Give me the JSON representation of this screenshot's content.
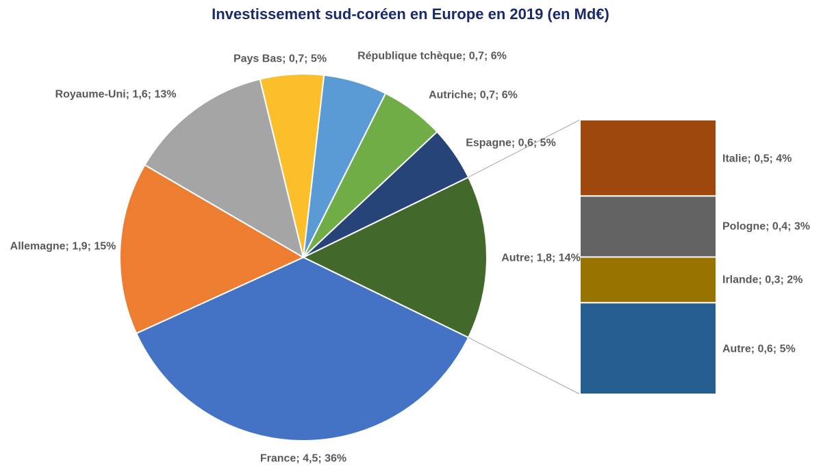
{
  "chart_data": {
    "type": "pie-of-bar",
    "title": "Investissement sud-coréen en Europe en 2019 (en Md€)",
    "unit": "Md€",
    "pie": [
      {
        "name": "Autre",
        "value": 1.8,
        "percent": 14,
        "label": "Autre; 1,8; 14%",
        "color": "#43682B"
      },
      {
        "name": "France",
        "value": 4.5,
        "percent": 36,
        "label": "France; 4,5; 36%",
        "color": "#4472C4"
      },
      {
        "name": "Allemagne",
        "value": 1.9,
        "percent": 15,
        "label": "Allemagne; 1,9; 15%",
        "color": "#ED7D31"
      },
      {
        "name": "Royaume-Uni",
        "value": 1.6,
        "percent": 13,
        "label": "Royaume-Uni; 1,6; 13%",
        "color": "#A5A5A5"
      },
      {
        "name": "Pays Bas",
        "value": 0.7,
        "percent": 5,
        "label": "Pays Bas; 0,7; 5%",
        "color": "#FBBF2C"
      },
      {
        "name": "République tchèque",
        "value": 0.7,
        "percent": 6,
        "label": "République tchèque; 0,7; 6%",
        "color": "#5B9BD5"
      },
      {
        "name": "Autriche",
        "value": 0.7,
        "percent": 6,
        "label": "Autriche; 0,7; 6%",
        "color": "#70AD47"
      },
      {
        "name": "Espagne",
        "value": 0.6,
        "percent": 5,
        "label": "Espagne; 0,6; 5%",
        "color": "#264478"
      }
    ],
    "bar_breakdown_of": "Autre",
    "bar": [
      {
        "name": "Italie",
        "value": 0.5,
        "percent": 4,
        "label": "Italie; 0,5; 4%",
        "color": "#9E480E"
      },
      {
        "name": "Pologne",
        "value": 0.4,
        "percent": 3,
        "label": "Pologne; 0,4; 3%",
        "color": "#636363"
      },
      {
        "name": "Irlande",
        "value": 0.3,
        "percent": 2,
        "label": "Irlande; 0,3; 2%",
        "color": "#997300"
      },
      {
        "name": "Autre",
        "value": 0.6,
        "percent": 5,
        "label": "Autre; 0,6; 5%",
        "color": "#255E91"
      }
    ],
    "legend": "none"
  }
}
